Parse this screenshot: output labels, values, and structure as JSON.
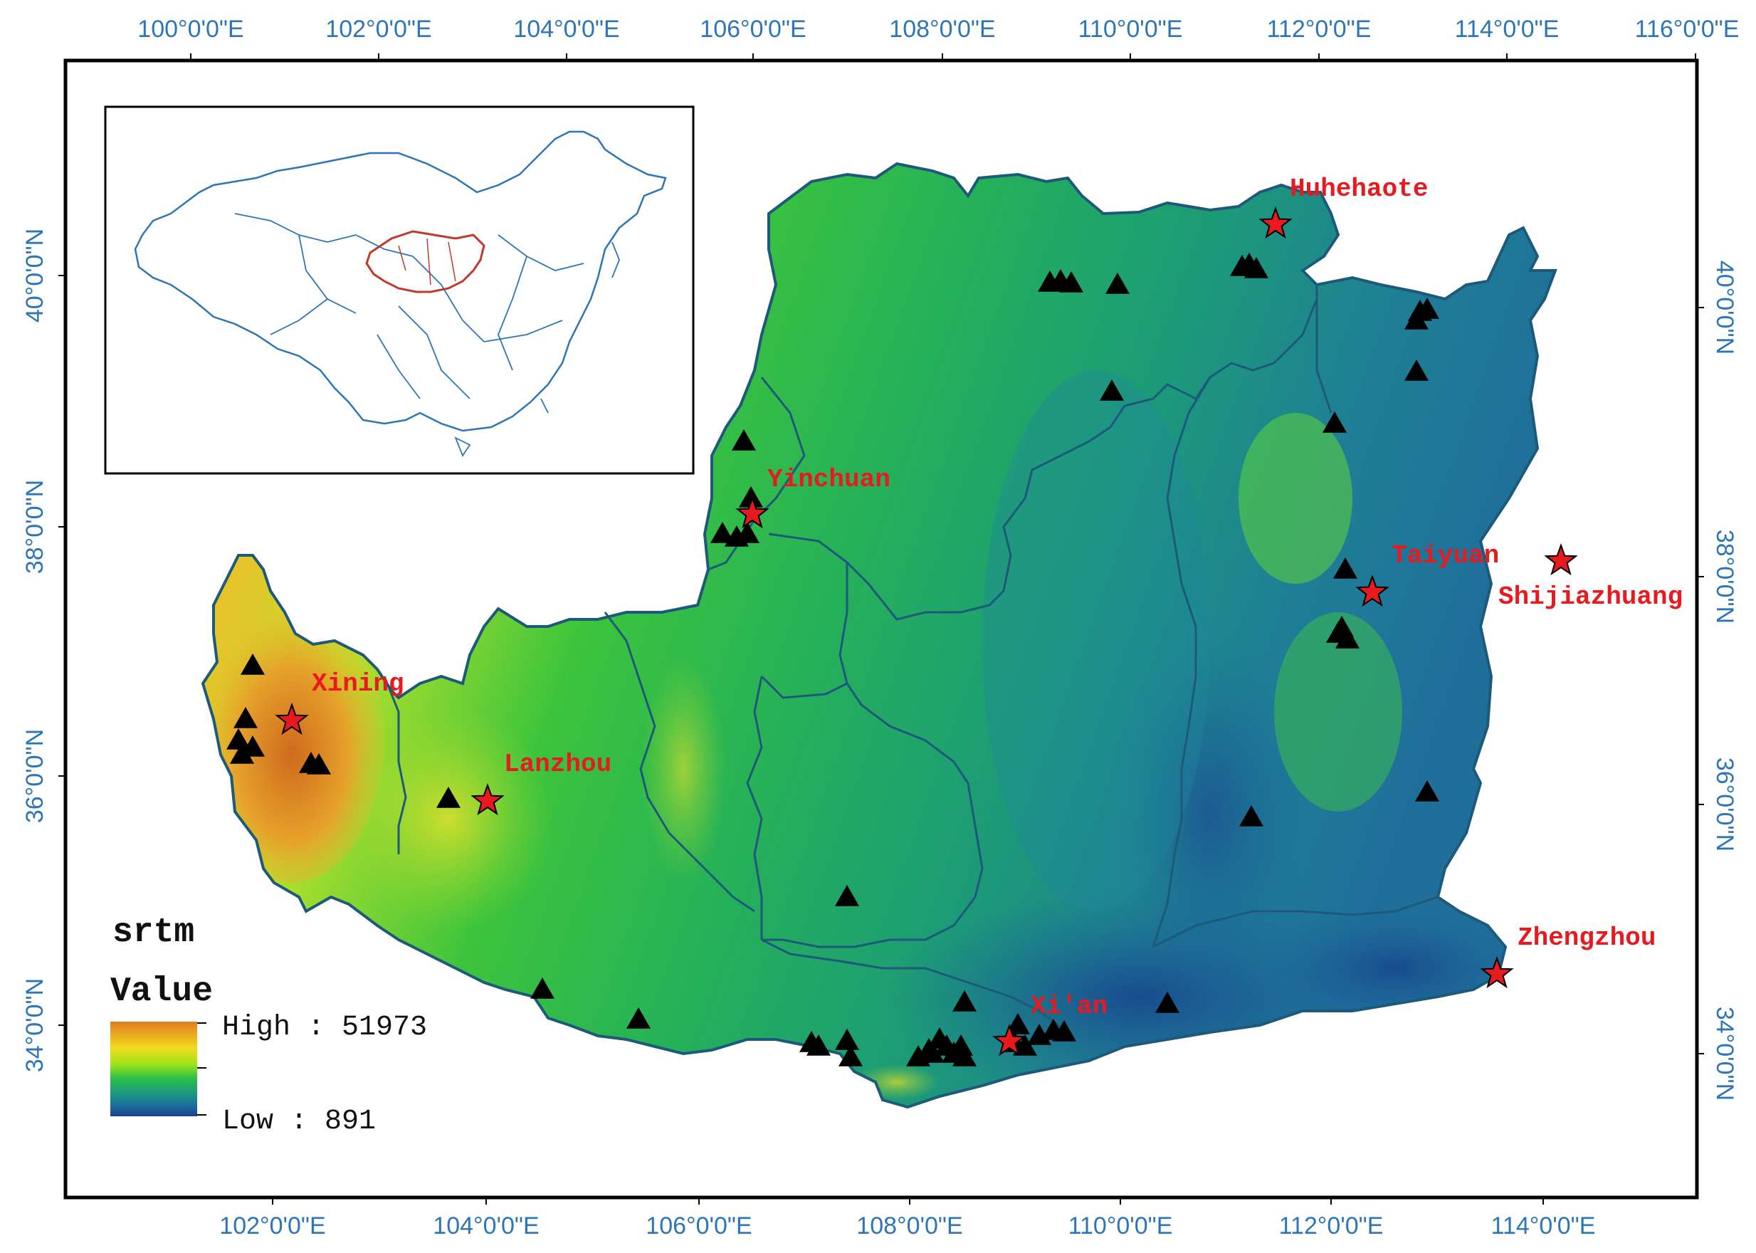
{
  "map": {
    "top_lon_labels": [
      "100°0'0\"E",
      "102°0'0\"E",
      "104°0'0\"E",
      "106°0'0\"E",
      "108°0'0\"E",
      "110°0'0\"E",
      "112°0'0\"E",
      "114°0'0\"E",
      "116°0'0\"E"
    ],
    "bottom_lon_labels": [
      "102°0'0\"E",
      "104°0'0\"E",
      "106°0'0\"E",
      "108°0'0\"E",
      "110°0'0\"E",
      "112°0'0\"E",
      "114°0'0\"E"
    ],
    "left_lat_labels": [
      "40°0'0\"N",
      "38°0'0\"N",
      "36°0'0\"N",
      "34°0'0\"N"
    ],
    "right_lat_labels": [
      "40°0'0\"N",
      "38°0'0\"N",
      "36°0'0\"N",
      "34°0'0\"N"
    ]
  },
  "cities": [
    "Huhehaote",
    "Yinchuan",
    "Taiyuan",
    "Shijiazhuang",
    "Xining",
    "Lanzhou",
    "Xi'an",
    "Zhengzhou"
  ],
  "legend": {
    "layer_name": "srtm",
    "field_name": "Value",
    "high_label": "High : 51973",
    "low_label": "Low : 891",
    "colors": [
      "#e07a22",
      "#f2dc1c",
      "#9ee31a",
      "#2cc04a",
      "#1e9a7a",
      "#1d6f9c",
      "#1a3f8c"
    ]
  },
  "colors": {
    "tick_label": "#2e75b6",
    "city_label": "#e8191f",
    "inset_boundary": "#2e75b6",
    "inset_highlight": "#c0392b",
    "station_marker": "#000000",
    "city_marker": "#e8191f"
  },
  "icons": {
    "station": "black-triangle-icon",
    "city": "red-star-icon"
  }
}
